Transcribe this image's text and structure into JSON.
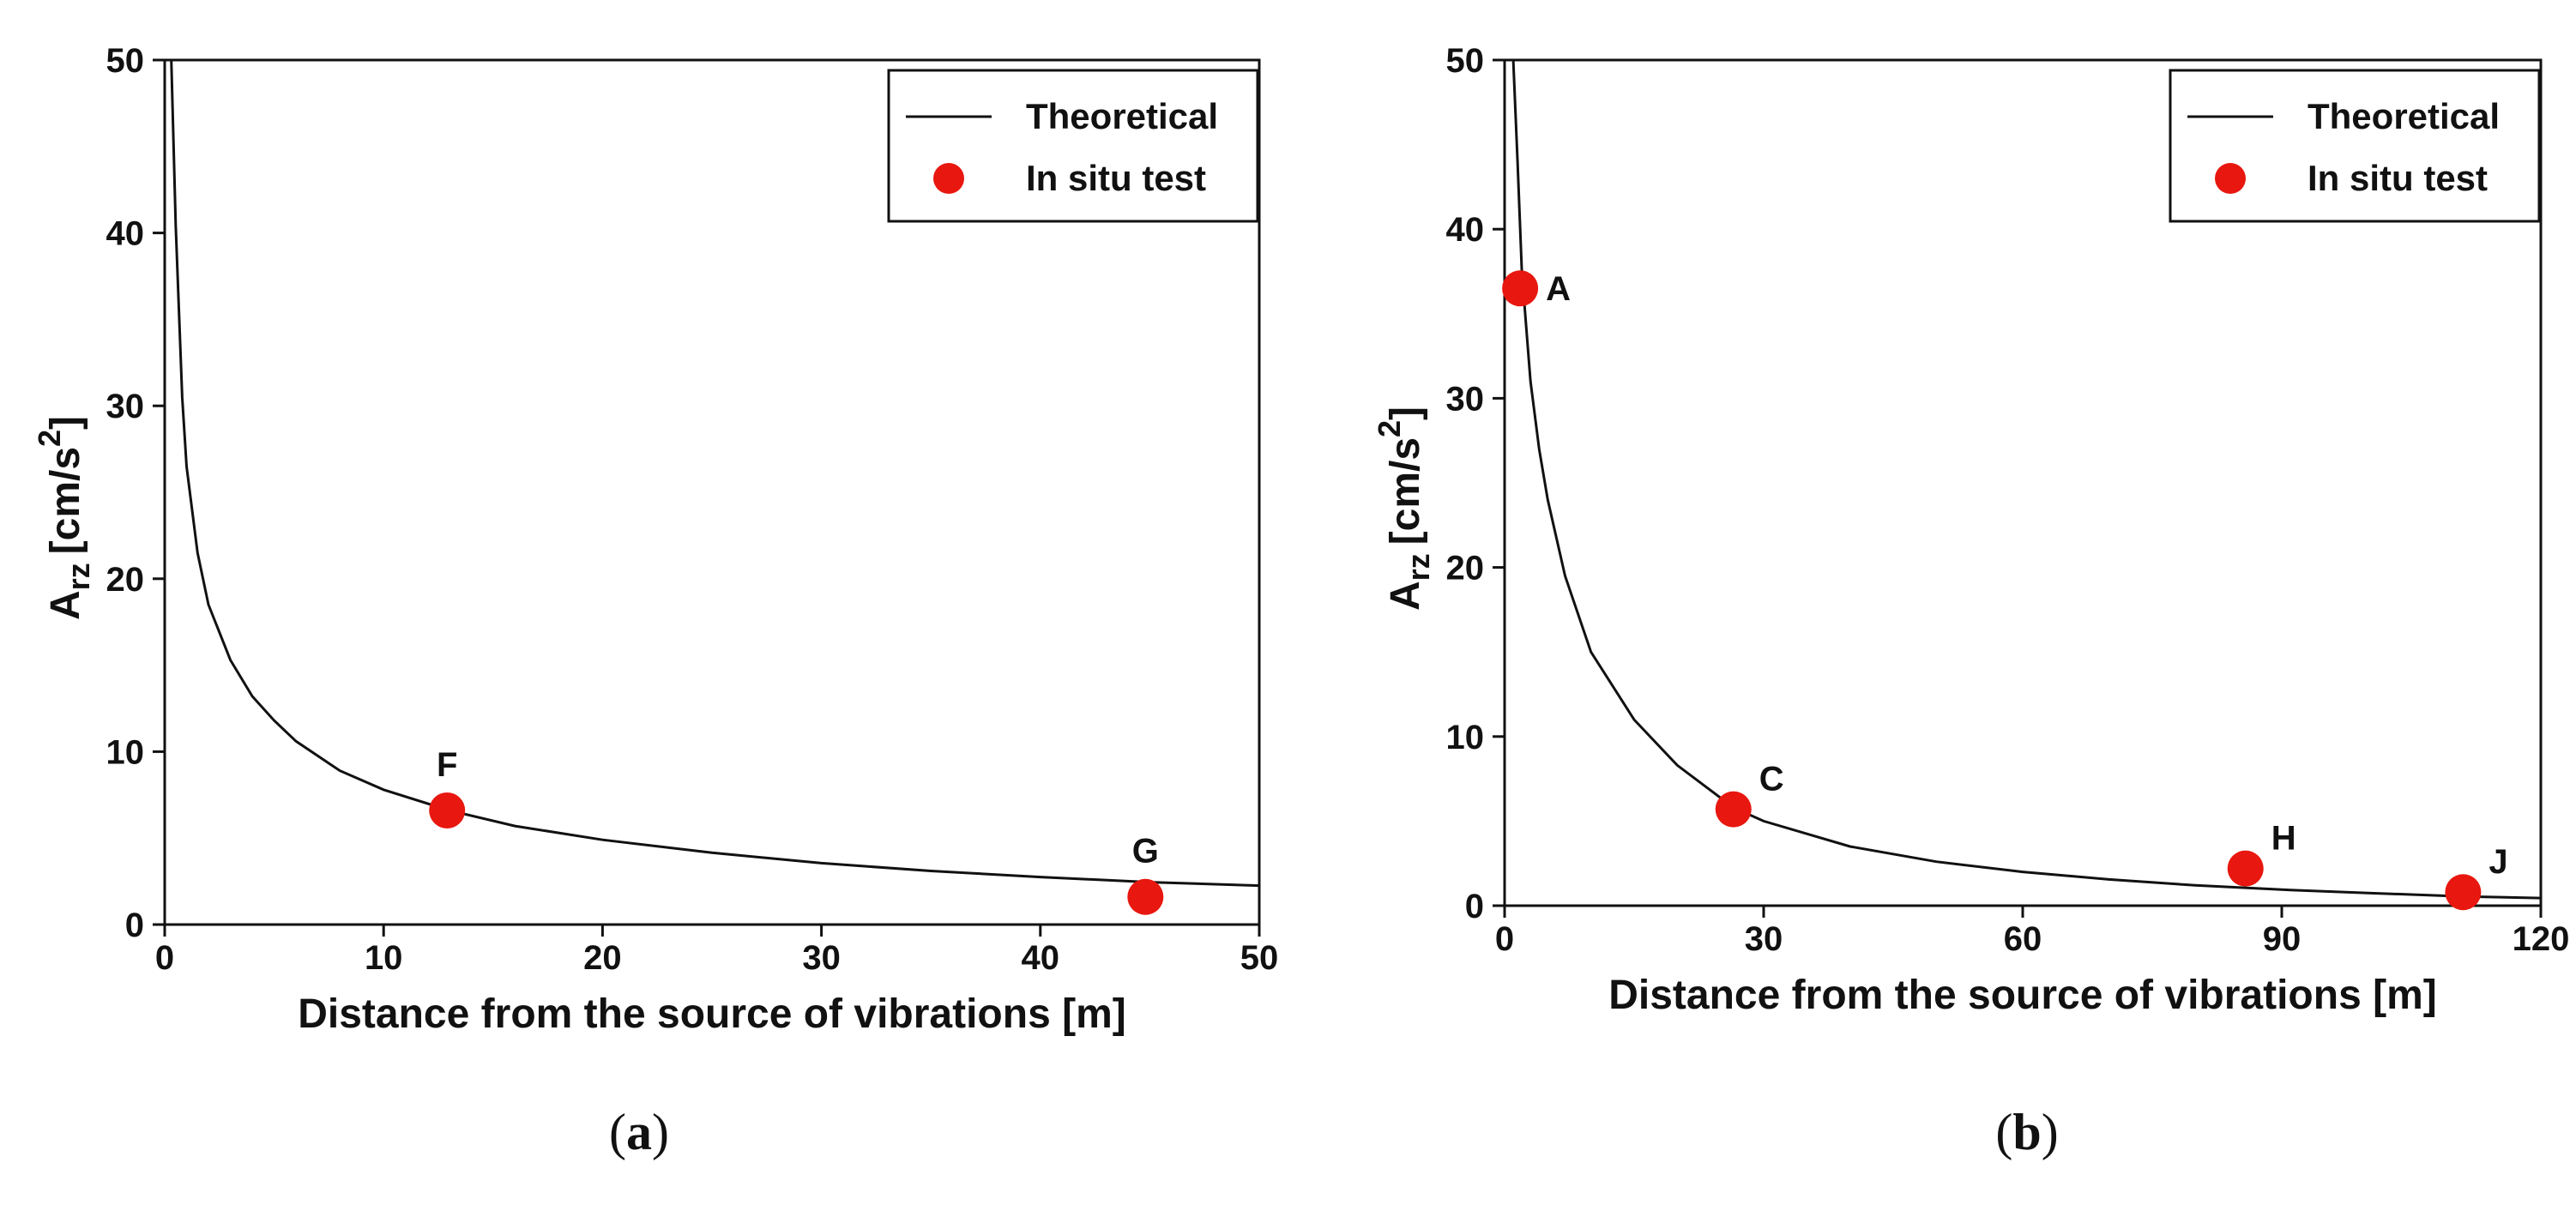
{
  "chart_data": [
    {
      "type": "line",
      "panel": "a",
      "caption_open": "(",
      "caption_letter": "a",
      "caption_close": ")",
      "xlabel": "Distance from the source of vibrations [m]",
      "ylabel_main": "A",
      "ylabel_sub": "rz",
      "ylabel_unit": "[cm/s",
      "ylabel_sup": "2",
      "ylabel_close": "]",
      "xlim": [
        0,
        50
      ],
      "ylim": [
        0,
        50
      ],
      "xticks": [
        0,
        10,
        20,
        30,
        40,
        50
      ],
      "yticks": [
        0,
        10,
        20,
        30,
        40,
        50
      ],
      "legend": {
        "position": "top-right",
        "line_label": "Theoretical",
        "marker_label": "In situ test"
      },
      "series": [
        {
          "name": "Theoretical",
          "x": [
            0.3,
            0.5,
            0.8,
            1,
            1.5,
            2,
            3,
            4,
            5,
            6,
            8,
            10,
            13,
            16,
            20,
            25,
            30,
            35,
            40,
            45,
            50
          ],
          "values": [
            50,
            40.5,
            30.5,
            26.5,
            21.5,
            18.5,
            15.3,
            13.2,
            11.8,
            10.6,
            8.9,
            7.8,
            6.6,
            5.7,
            4.9,
            4.15,
            3.55,
            3.1,
            2.75,
            2.45,
            2.25
          ],
          "color": "#111111"
        },
        {
          "name": "In situ test",
          "points": [
            {
              "label": "F",
              "x": 12.9,
              "y": 6.6
            },
            {
              "label": "G",
              "x": 44.8,
              "y": 1.6
            }
          ],
          "color": "#e8170f"
        }
      ]
    },
    {
      "type": "line",
      "panel": "b",
      "caption_open": "(",
      "caption_letter": "b",
      "caption_close": ")",
      "xlabel": "Distance from the source of vibrations [m]",
      "ylabel_main": "A",
      "ylabel_sub": "rz",
      "ylabel_unit": "[cm/s",
      "ylabel_sup": "2",
      "ylabel_close": "]",
      "xlim": [
        0,
        120
      ],
      "ylim": [
        0,
        50
      ],
      "xticks": [
        0,
        30,
        60,
        90,
        120
      ],
      "yticks": [
        0,
        10,
        20,
        30,
        40,
        50
      ],
      "legend": {
        "position": "top-right",
        "line_label": "Theoretical",
        "marker_label": "In situ test"
      },
      "series": [
        {
          "name": "Theoretical",
          "x": [
            1,
            1.5,
            2,
            3,
            4,
            5,
            7,
            10,
            15,
            20,
            26.5,
            30,
            40,
            50,
            60,
            70,
            80,
            86,
            90,
            100,
            111,
            120
          ],
          "values": [
            50,
            44,
            37.5,
            31,
            27,
            24,
            19.5,
            15,
            11,
            8.3,
            5.8,
            5.0,
            3.5,
            2.6,
            2.0,
            1.55,
            1.2,
            1.05,
            0.95,
            0.75,
            0.55,
            0.45
          ],
          "color": "#111111"
        },
        {
          "name": "In situ test",
          "points": [
            {
              "label": "A",
              "x": 1.8,
              "y": 36.5
            },
            {
              "label": "C",
              "x": 26.5,
              "y": 5.7
            },
            {
              "label": "H",
              "x": 85.8,
              "y": 2.2
            },
            {
              "label": "J",
              "x": 111,
              "y": 0.8
            }
          ],
          "color": "#e8170f"
        }
      ]
    }
  ]
}
